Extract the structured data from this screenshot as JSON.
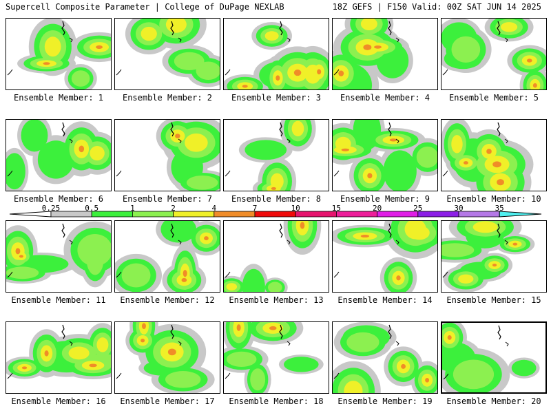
{
  "header": {
    "title": "Supercell Composite Parameter | College of DuPage NEXLAB",
    "run_info": "18Z GEFS | F150 Valid: 00Z SAT JUN 14 2025"
  },
  "legend": {
    "levels": [
      "0.25",
      "0.5",
      "1",
      "2",
      "4",
      "7",
      "10",
      "15",
      "20",
      "25",
      "30",
      "35"
    ],
    "colors": [
      "#c8c8c8",
      "#3cf03c",
      "#8cf050",
      "#f0f028",
      "#f08c28",
      "#f00a0a",
      "#e6146e",
      "#ee1e9a",
      "#e01ee6",
      "#8c1ee6",
      "#b478e6",
      "#50f0f0"
    ]
  },
  "panels": [
    {
      "label": "Ensemble Member: 1"
    },
    {
      "label": "Ensemble Member: 2"
    },
    {
      "label": "Ensemble Member: 3"
    },
    {
      "label": "Ensemble Member: 4"
    },
    {
      "label": "Ensemble Member: 5"
    },
    {
      "label": "Ensemble Member: 6"
    },
    {
      "label": "Ensemble Member: 7"
    },
    {
      "label": "Ensemble Member: 8"
    },
    {
      "label": "Ensemble Member: 9"
    },
    {
      "label": "Ensemble Member: 10"
    },
    {
      "label": "Ensemble Member: 11"
    },
    {
      "label": "Ensemble Member: 12"
    },
    {
      "label": "Ensemble Member: 13"
    },
    {
      "label": "Ensemble Member: 14"
    },
    {
      "label": "Ensemble Member: 15"
    },
    {
      "label": "Ensemble Member: 16"
    },
    {
      "label": "Ensemble Member: 17"
    },
    {
      "label": "Ensemble Member: 18"
    },
    {
      "label": "Ensemble Member: 19"
    },
    {
      "label": "Ensemble Member: 20"
    }
  ]
}
